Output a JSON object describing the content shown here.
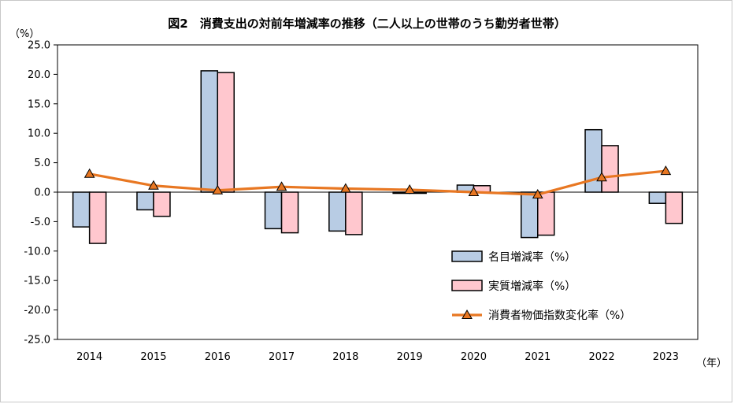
{
  "chart_data": {
    "type": "bar",
    "title": "図2　消費支出の対前年増減率の推移（二人以上の世帯のうち勤労者世帯）",
    "ylabel": "（%）",
    "xlabel": "（年）",
    "ylim": [
      -25.0,
      25.0
    ],
    "yticks": [
      "25.0",
      "20.0",
      "15.0",
      "10.0",
      "5.0",
      "0.0",
      "-5.0",
      "-10.0",
      "-15.0",
      "-20.0",
      "-25.0"
    ],
    "categories": [
      "2014",
      "2015",
      "2016",
      "2017",
      "2018",
      "2019",
      "2020",
      "2021",
      "2022",
      "2023"
    ],
    "grid": false,
    "legend_position": "bottom-right",
    "series": [
      {
        "name": "名目増減率（%）",
        "type": "bar",
        "color": "#b8cce4",
        "values": [
          -5.9,
          -3.0,
          20.6,
          -6.2,
          -6.6,
          -0.2,
          1.2,
          -7.7,
          10.6,
          -1.9
        ]
      },
      {
        "name": "実質増減率（%）",
        "type": "bar",
        "color": "#ffc7ce",
        "values": [
          -8.7,
          -4.1,
          20.3,
          -6.9,
          -7.2,
          -0.2,
          1.1,
          -7.3,
          7.9,
          -5.3
        ]
      },
      {
        "name": "消費者物価指数変化率（%）",
        "type": "line",
        "color": "#e87722",
        "marker": "triangle",
        "values": [
          3.1,
          1.1,
          0.3,
          0.9,
          0.6,
          0.4,
          0.0,
          -0.4,
          2.5,
          3.6
        ]
      }
    ]
  }
}
